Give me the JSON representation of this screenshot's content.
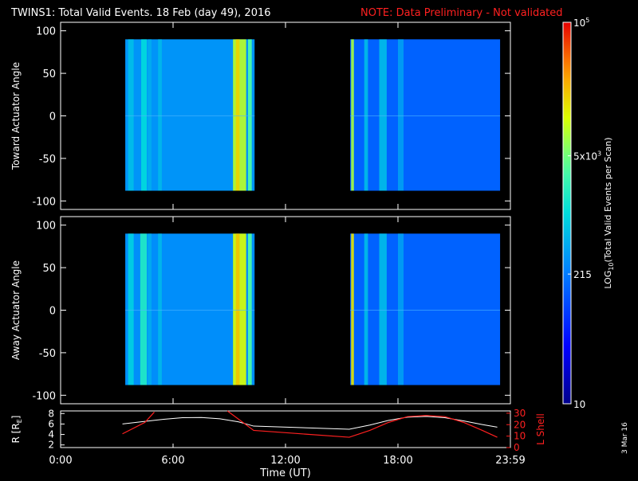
{
  "header": {
    "title": "TWINS1: Total Valid Events. 18 Feb (day  49), 2016",
    "note": "NOTE: Data Preliminary - Not validated"
  },
  "side_stamp": "3 Mar 16",
  "colors": {
    "note": "#ff2020",
    "trace_r": "#ffffff",
    "trace_l": "#ff2020",
    "frame": "#ffffff"
  },
  "chart_data": [
    {
      "type": "heatmap",
      "panel": "toward",
      "ylabel": "Toward Actuator Angle",
      "ylim": [
        -110,
        110
      ],
      "yticks": [
        100,
        50,
        0,
        -50,
        -100
      ],
      "data_ylim": [
        -88,
        90
      ],
      "xlim_hours": [
        0,
        24
      ],
      "segments": [
        {
          "x0": 3.45,
          "x1": 10.35,
          "base": 0.38,
          "stripes": [
            {
              "x0": 3.6,
              "x1": 3.9,
              "v": 0.45
            },
            {
              "x0": 4.3,
              "x1": 4.6,
              "v": 0.5
            },
            {
              "x0": 4.65,
              "x1": 4.85,
              "v": 0.42
            },
            {
              "x0": 5.2,
              "x1": 5.4,
              "v": 0.44
            },
            {
              "x0": 9.2,
              "x1": 9.9,
              "v": 0.72
            },
            {
              "x0": 9.35,
              "x1": 9.55,
              "v": 0.8
            },
            {
              "x0": 10.0,
              "x1": 10.2,
              "v": 0.62
            }
          ]
        },
        {
          "x0": 15.45,
          "x1": 23.45,
          "base": 0.3,
          "stripes": [
            {
              "x0": 15.5,
              "x1": 15.65,
              "v": 0.7
            },
            {
              "x0": 16.2,
              "x1": 16.4,
              "v": 0.45
            },
            {
              "x0": 17.0,
              "x1": 17.4,
              "v": 0.45
            },
            {
              "x0": 18.0,
              "x1": 18.3,
              "v": 0.4
            }
          ]
        }
      ]
    },
    {
      "type": "heatmap",
      "panel": "away",
      "ylabel": "Away Actuator Angle",
      "ylim": [
        -110,
        110
      ],
      "yticks": [
        100,
        50,
        0,
        -50,
        -100
      ],
      "data_ylim": [
        -88,
        90
      ],
      "xlim_hours": [
        0,
        24
      ],
      "segments": [
        {
          "x0": 3.45,
          "x1": 10.35,
          "base": 0.37,
          "stripes": [
            {
              "x0": 3.6,
              "x1": 3.9,
              "v": 0.48
            },
            {
              "x0": 4.25,
              "x1": 4.6,
              "v": 0.55
            },
            {
              "x0": 4.65,
              "x1": 4.85,
              "v": 0.42
            },
            {
              "x0": 5.2,
              "x1": 5.4,
              "v": 0.44
            },
            {
              "x0": 9.2,
              "x1": 9.9,
              "v": 0.75
            },
            {
              "x0": 9.35,
              "x1": 9.55,
              "v": 0.82
            },
            {
              "x0": 10.0,
              "x1": 10.2,
              "v": 0.62
            }
          ]
        },
        {
          "x0": 15.45,
          "x1": 23.45,
          "base": 0.3,
          "stripes": [
            {
              "x0": 15.5,
              "x1": 15.65,
              "v": 0.78
            },
            {
              "x0": 16.2,
              "x1": 16.4,
              "v": 0.45
            },
            {
              "x0": 17.0,
              "x1": 17.4,
              "v": 0.45
            },
            {
              "x0": 18.0,
              "x1": 18.3,
              "v": 0.4
            }
          ]
        }
      ]
    },
    {
      "type": "line",
      "panel": "orbit",
      "ylabel": "R [R",
      "ylabel_sub": "E",
      "ylabel_end": "]",
      "y2label": "L Shell",
      "ylim": [
        1.5,
        8.5
      ],
      "yticks": [
        2,
        4,
        6,
        8
      ],
      "y2lim": [
        0,
        32
      ],
      "y2ticks": [
        0,
        10,
        20,
        30
      ],
      "xlim_hours": [
        0,
        24
      ],
      "xticks": [
        "0:00",
        "6:00",
        "12:00",
        "18:00",
        "23:59"
      ],
      "xtick_hours": [
        0,
        6,
        12,
        18,
        24
      ],
      "xlabel": "Time (UT)",
      "series": [
        {
          "axis": "left",
          "x": [
            3.3,
            4.5,
            5.5,
            6.5,
            7.5,
            8.5,
            9.5,
            10.3,
            15.4,
            16.5,
            17.5,
            18.5,
            19.5,
            20.5,
            21.5,
            22.5,
            23.3
          ],
          "y": [
            6.0,
            6.5,
            6.9,
            7.2,
            7.25,
            7.0,
            6.4,
            5.6,
            5.0,
            5.8,
            6.7,
            7.3,
            7.45,
            7.2,
            6.6,
            5.9,
            5.4
          ]
        },
        {
          "axis": "right",
          "segments": [
            {
              "x": [
                3.3,
                4.5,
                5.0
              ],
              "y": [
                12,
                22,
                31
              ]
            },
            {
              "x": [
                8.9,
                10.3,
                15.4,
                16.5,
                17.5,
                18.5,
                19.5,
                20.5,
                21.5,
                22.5,
                23.3
              ],
              "y": [
                32,
                15,
                9,
                15,
                22,
                27,
                28,
                27,
                22,
                15,
                9
              ]
            }
          ]
        }
      ]
    }
  ],
  "colorbar": {
    "label_prefix": "LOG",
    "label_sub": "10",
    "label_rest": "(Total Valid  Events per Scan)",
    "ticks": [
      {
        "frac": 1.0,
        "label": "10",
        "sup": "5"
      },
      {
        "frac": 0.65,
        "label": "5x10",
        "sup": "3"
      },
      {
        "frac": 0.34,
        "label": "215",
        "sup": ""
      },
      {
        "frac": 0.0,
        "label": "10",
        "sup": ""
      }
    ]
  }
}
